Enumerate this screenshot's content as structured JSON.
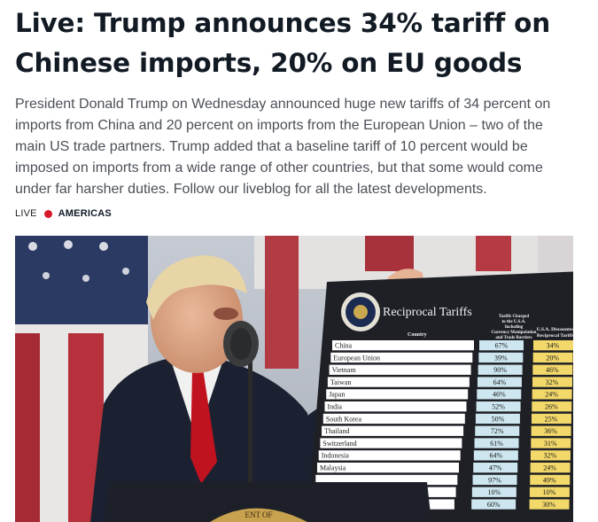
{
  "headline": "Live: Trump announces 34% tariff on Chinese imports, 20% on EU goods",
  "headline_lines": [
    "Live: Trump announces 34% tariff on",
    "Chinese imports, 20% on EU goods"
  ],
  "summary_lines": [
    "President Donald Trump on Wednesday announced huge new tariffs of 34 percent on",
    "imports from China and 20 percent on imports from the European Union – two of the",
    "main US trade partners. Trump added that a baseline tariff of 10 percent would be",
    "imposed on imports from a wide range of other countries, but that some would come",
    "under far harsher duties. Follow our liveblog for all the latest developments."
  ],
  "tagline": {
    "live_label": "LIVE",
    "region": "AMERICAS"
  },
  "colors": {
    "live_dot": "#d7192a",
    "board_bg": "#1e2026",
    "charged_col": "#cde6ef",
    "discount_col": "#f3d86a"
  },
  "photo": {
    "board": {
      "title": "Reciprocal Tariffs",
      "column_country": "Country",
      "column_charged_lines": [
        "Tariffs Charged",
        "to the U.S.A.",
        "Including",
        "Currency Manipulation",
        "and Trade Barriers"
      ],
      "column_discounted_lines": [
        "U.S.A. Discounted",
        "Reciprocal Tariffs"
      ],
      "podium_text": "ENT OF",
      "rows": [
        {
          "country": "China",
          "charged": "67%",
          "reciprocal": "34%"
        },
        {
          "country": "European Union",
          "charged": "39%",
          "reciprocal": "20%"
        },
        {
          "country": "Vietnam",
          "charged": "90%",
          "reciprocal": "46%"
        },
        {
          "country": "Taiwan",
          "charged": "64%",
          "reciprocal": "32%"
        },
        {
          "country": "Japan",
          "charged": "46%",
          "reciprocal": "24%"
        },
        {
          "country": "India",
          "charged": "52%",
          "reciprocal": "26%"
        },
        {
          "country": "South Korea",
          "charged": "50%",
          "reciprocal": "25%"
        },
        {
          "country": "Thailand",
          "charged": "72%",
          "reciprocal": "36%"
        },
        {
          "country": "Switzerland",
          "charged": "61%",
          "reciprocal": "31%"
        },
        {
          "country": "Indonesia",
          "charged": "64%",
          "reciprocal": "32%"
        },
        {
          "country": "Malaysia",
          "charged": "47%",
          "reciprocal": "24%"
        },
        {
          "country": "",
          "charged": "97%",
          "reciprocal": "49%"
        },
        {
          "country": "",
          "charged": "10%",
          "reciprocal": "10%"
        },
        {
          "country": "",
          "charged": "60%",
          "reciprocal": "30%"
        }
      ]
    }
  }
}
